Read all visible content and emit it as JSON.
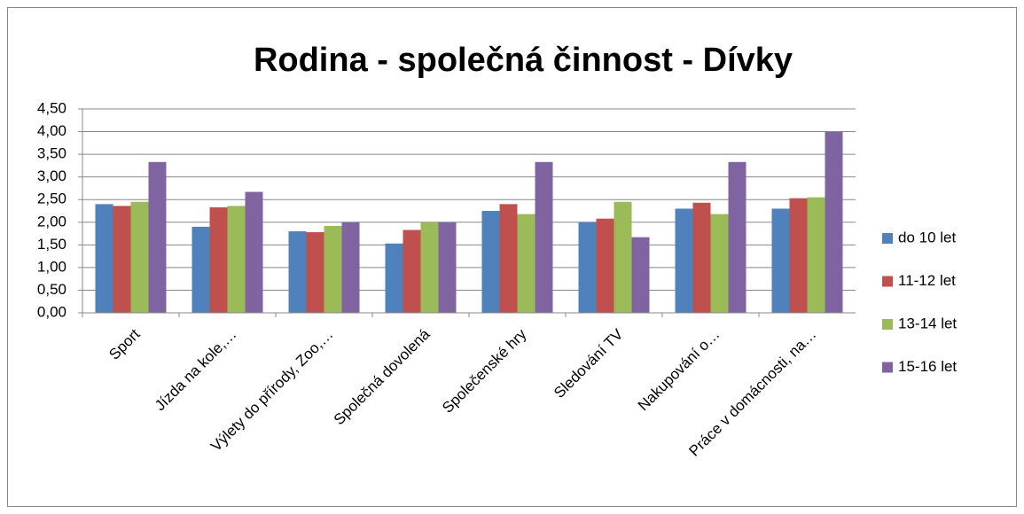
{
  "chart_data": {
    "type": "bar",
    "title": "Rodina - společná činnost - Dívky",
    "categories": [
      "Sport",
      "Jízda na kole,…",
      "Výlety do přírody, Zoo,…",
      "Společná dovolená",
      "Společenské hry",
      "Sledování TV",
      "Nakupování o…",
      "Práce v domácnosti, na…"
    ],
    "series": [
      {
        "name": "do 10 let",
        "color": "#4f81bd",
        "values": [
          2.4,
          1.9,
          1.8,
          1.53,
          2.25,
          2.0,
          2.3,
          2.3
        ]
      },
      {
        "name": "11-12 let",
        "color": "#c0504d",
        "values": [
          2.36,
          2.33,
          1.78,
          1.83,
          2.4,
          2.08,
          2.43,
          2.53
        ]
      },
      {
        "name": "13-14 let",
        "color": "#9bbb59",
        "values": [
          2.45,
          2.36,
          1.92,
          2.0,
          2.18,
          2.45,
          2.18,
          2.55
        ]
      },
      {
        "name": "15-16 let",
        "color": "#8064a2",
        "values": [
          3.33,
          2.67,
          2.0,
          2.0,
          3.33,
          1.67,
          3.33,
          4.0
        ]
      }
    ],
    "ylim": [
      0,
      4.5
    ],
    "yticks": [
      {
        "value": 0,
        "label": "0,00"
      },
      {
        "value": 0.5,
        "label": "0,50"
      },
      {
        "value": 1,
        "label": "1,00"
      },
      {
        "value": 1.5,
        "label": "1,50"
      },
      {
        "value": 2,
        "label": "2,00"
      },
      {
        "value": 2.5,
        "label": "2,50"
      },
      {
        "value": 3,
        "label": "3,00"
      },
      {
        "value": 3.5,
        "label": "3,50"
      },
      {
        "value": 4,
        "label": "4,00"
      },
      {
        "value": 4.5,
        "label": "4,50"
      }
    ],
    "grid": true,
    "legend": "right"
  }
}
